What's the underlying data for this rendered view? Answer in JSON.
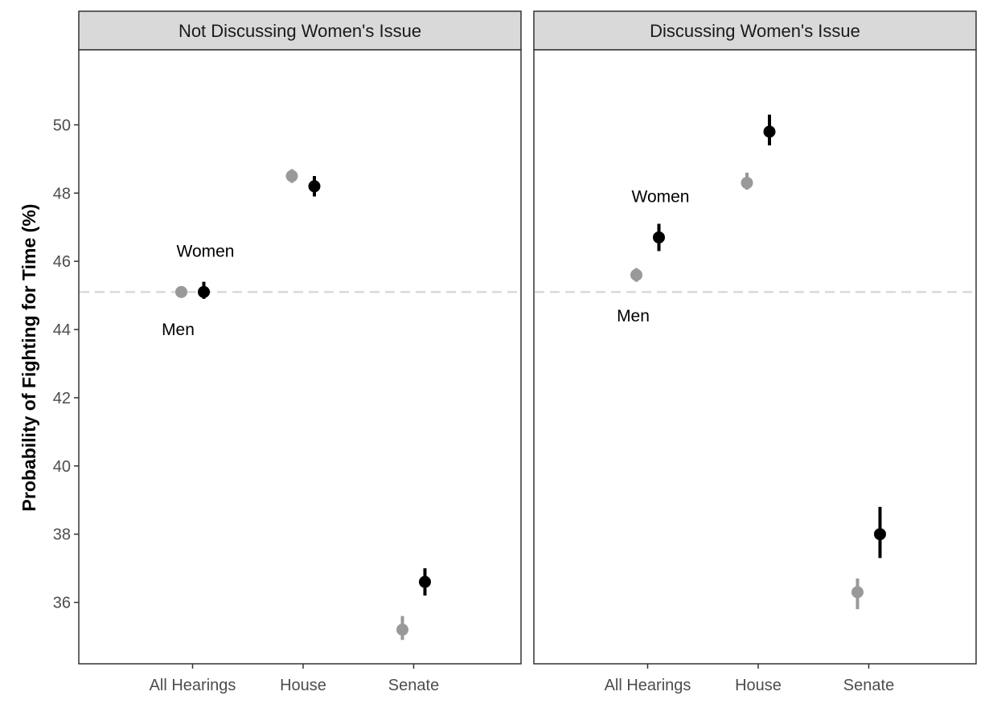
{
  "chart_data": {
    "type": "scatter",
    "ylabel": "Probability of Fighting for Time (%)",
    "ylim": [
      34.2,
      52.2
    ],
    "yticks": [
      36,
      38,
      40,
      42,
      44,
      46,
      48,
      50
    ],
    "yticks_labels": [
      "36",
      "38",
      "40",
      "42",
      "44",
      "46",
      "48",
      "50"
    ],
    "categories": [
      "All Hearings",
      "House",
      "Senate"
    ],
    "reference_line": 45.1,
    "colors": {
      "men": "#999999",
      "women": "#000000",
      "strip": "#d9d9d9",
      "refline": "#d9d9d9"
    },
    "panels": [
      {
        "title": "Not Discussing Women's Issue",
        "series": [
          {
            "group": "men",
            "points": [
              {
                "category": "All Hearings",
                "y": 45.1,
                "ymin": 45.0,
                "ymax": 45.2
              },
              {
                "category": "House",
                "y": 48.5,
                "ymin": 48.3,
                "ymax": 48.7
              },
              {
                "category": "Senate",
                "y": 35.2,
                "ymin": 34.9,
                "ymax": 35.6
              }
            ]
          },
          {
            "group": "women",
            "points": [
              {
                "category": "All Hearings",
                "y": 45.1,
                "ymin": 44.9,
                "ymax": 45.4
              },
              {
                "category": "House",
                "y": 48.2,
                "ymin": 47.9,
                "ymax": 48.5
              },
              {
                "category": "Senate",
                "y": 36.6,
                "ymin": 36.2,
                "ymax": 37.0
              }
            ]
          }
        ],
        "annotations": [
          {
            "text": "Women",
            "category": "All Hearings",
            "y": 46.3
          },
          {
            "text": "Men",
            "category": "All Hearings",
            "y": 44.0
          }
        ]
      },
      {
        "title": "Discussing Women's Issue",
        "series": [
          {
            "group": "men",
            "points": [
              {
                "category": "All Hearings",
                "y": 45.6,
                "ymin": 45.4,
                "ymax": 45.8
              },
              {
                "category": "House",
                "y": 48.3,
                "ymin": 48.1,
                "ymax": 48.6
              },
              {
                "category": "Senate",
                "y": 36.3,
                "ymin": 35.8,
                "ymax": 36.7
              }
            ]
          },
          {
            "group": "women",
            "points": [
              {
                "category": "All Hearings",
                "y": 46.7,
                "ymin": 46.3,
                "ymax": 47.1
              },
              {
                "category": "House",
                "y": 49.8,
                "ymin": 49.4,
                "ymax": 50.3
              },
              {
                "category": "Senate",
                "y": 38.0,
                "ymin": 37.3,
                "ymax": 38.8
              }
            ]
          }
        ],
        "annotations": [
          {
            "text": "Women",
            "category": "All Hearings",
            "y": 47.9
          },
          {
            "text": "Men",
            "category": "All Hearings",
            "y": 44.4
          }
        ]
      }
    ]
  }
}
